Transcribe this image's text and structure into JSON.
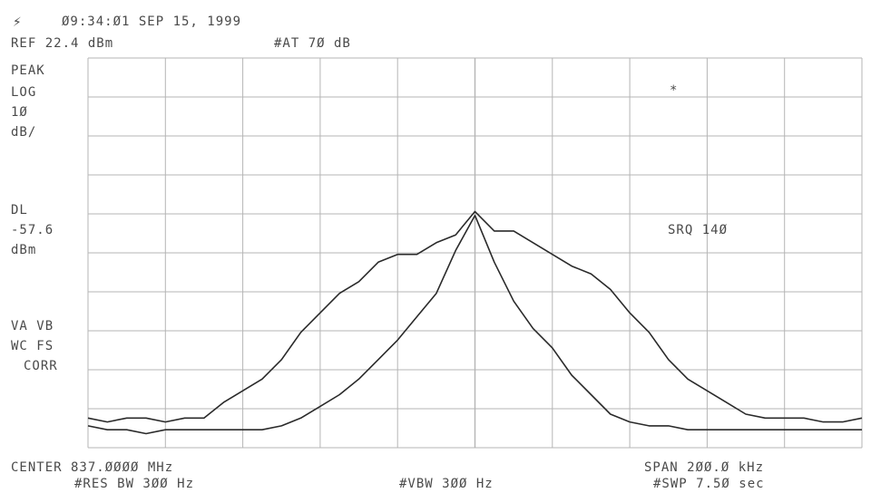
{
  "header": {
    "timestamp": "Ø9:34:Ø1 SEP 15, 1999",
    "reference": "REF 22.4 dBm",
    "attenuation": "#AT 7Ø dB"
  },
  "left_panel": {
    "mode": "PEAK",
    "scale": "LOG",
    "division": "1Ø",
    "division_unit": "dB/",
    "display_line_label": "DL",
    "display_line_value": "-57.6",
    "display_line_unit": "dBm",
    "status_1": "VA VB",
    "status_2": "WC FS",
    "status_3": "CORR"
  },
  "annotations": {
    "marker": "*",
    "srq": "SRQ 14Ø"
  },
  "footer": {
    "center": "CENTER 837.ØØØØ MHz",
    "span": "SPAN 2ØØ.Ø kHz",
    "resolution_bw": "#RES BW 3ØØ Hz",
    "video_bw": "#VBW 3ØØ Hz",
    "sweep": "#SWP 7.5Ø sec"
  },
  "colors": {
    "background": "#ffffff",
    "trace": "#2a2a2a",
    "grid": "#b5b5b5",
    "text": "#4a4a4a"
  },
  "chart_data": {
    "type": "line",
    "ref_level_dbm": 22.4,
    "db_per_div": 10,
    "divisions_x": 10,
    "divisions_y": 10,
    "center_mhz": 837.0,
    "span_khz": 200.0,
    "x_khz": [
      -100,
      -95,
      -90,
      -85,
      -80,
      -75,
      -70,
      -65,
      -60,
      -55,
      -50,
      -45,
      -40,
      -35,
      -30,
      -25,
      -20,
      -15,
      -10,
      -5,
      0,
      5,
      10,
      15,
      20,
      25,
      30,
      35,
      40,
      45,
      50,
      55,
      60,
      65,
      70,
      75,
      80,
      85,
      90,
      95,
      100
    ],
    "series": [
      {
        "values": [
          -70,
          -71,
          -70,
          -70,
          -71,
          -70,
          -70,
          -66,
          -63,
          -60,
          -55,
          -48,
          -43,
          -38,
          -35,
          -30,
          -28,
          -28,
          -25,
          -23,
          -17,
          -22,
          -22,
          -25,
          -28,
          -31,
          -33,
          -37,
          -43,
          -48,
          -55,
          -60,
          -63,
          -66,
          -69,
          -70,
          -70,
          -70,
          -71,
          -71,
          -70
        ]
      },
      {
        "values": [
          -72,
          -73,
          -73,
          -74,
          -73,
          -73,
          -73,
          -73,
          -73,
          -73,
          -72,
          -70,
          -67,
          -64,
          -60,
          -55,
          -50,
          -44,
          -38,
          -27,
          -18,
          -30,
          -40,
          -47,
          -52,
          -59,
          -64,
          -69,
          -71,
          -72,
          -72,
          -73,
          -73,
          -73,
          -73,
          -73,
          -73,
          -73,
          -73,
          -73,
          -73
        ]
      }
    ]
  }
}
